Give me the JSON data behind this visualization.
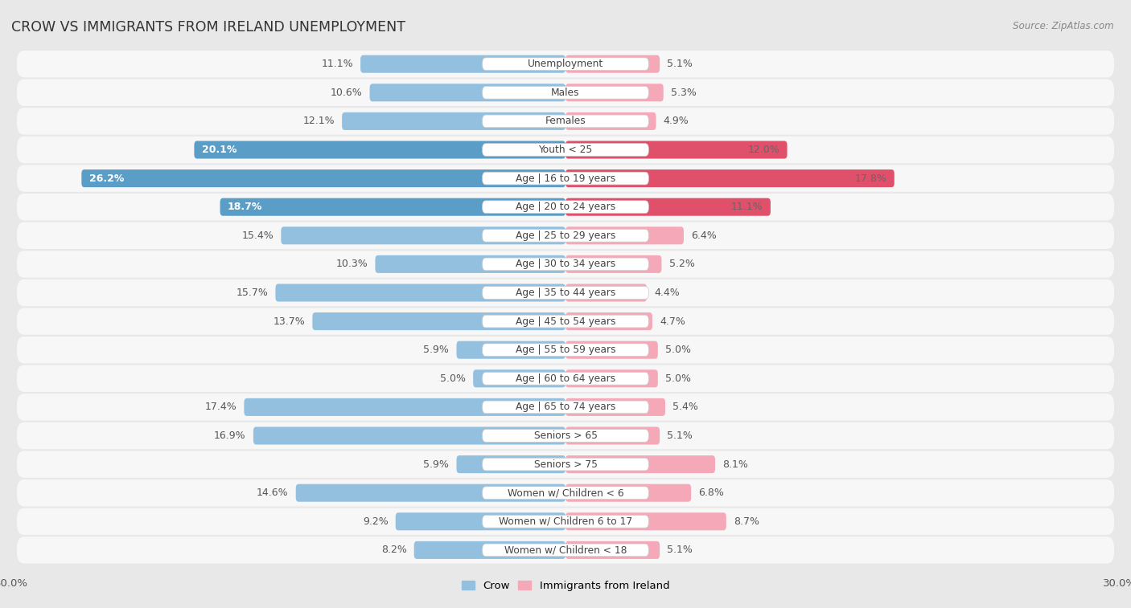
{
  "title": "CROW VS IMMIGRANTS FROM IRELAND UNEMPLOYMENT",
  "source": "Source: ZipAtlas.com",
  "categories": [
    "Unemployment",
    "Males",
    "Females",
    "Youth < 25",
    "Age | 16 to 19 years",
    "Age | 20 to 24 years",
    "Age | 25 to 29 years",
    "Age | 30 to 34 years",
    "Age | 35 to 44 years",
    "Age | 45 to 54 years",
    "Age | 55 to 59 years",
    "Age | 60 to 64 years",
    "Age | 65 to 74 years",
    "Seniors > 65",
    "Seniors > 75",
    "Women w/ Children < 6",
    "Women w/ Children 6 to 17",
    "Women w/ Children < 18"
  ],
  "crow_values": [
    11.1,
    10.6,
    12.1,
    20.1,
    26.2,
    18.7,
    15.4,
    10.3,
    15.7,
    13.7,
    5.9,
    5.0,
    17.4,
    16.9,
    5.9,
    14.6,
    9.2,
    8.2
  ],
  "ireland_values": [
    5.1,
    5.3,
    4.9,
    12.0,
    17.8,
    11.1,
    6.4,
    5.2,
    4.4,
    4.7,
    5.0,
    5.0,
    5.4,
    5.1,
    8.1,
    6.8,
    8.7,
    5.1
  ],
  "crow_color": "#92c0de",
  "ireland_color": "#f4a8b8",
  "crow_highlight_color": "#5a9ec8",
  "ireland_highlight_color": "#e0506a",
  "axis_max": 30.0,
  "page_bg": "#e8e8e8",
  "row_bg_white": "#f7f7f7",
  "bar_height": 0.62,
  "label_fontsize": 9.0,
  "category_fontsize": 8.8,
  "title_fontsize": 12.5,
  "source_fontsize": 8.5,
  "highlight_rows": [
    3,
    4,
    5
  ]
}
